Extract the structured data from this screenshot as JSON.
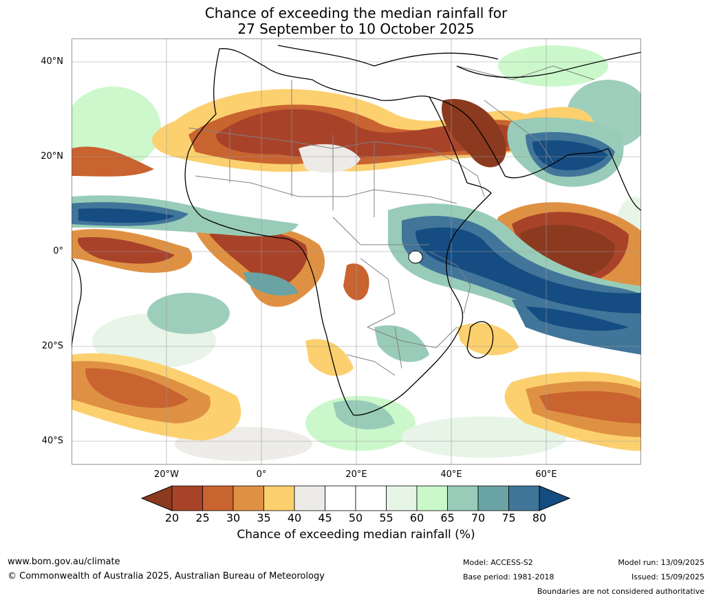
{
  "title": {
    "line1": "Chance of exceeding the median rainfall for",
    "line2": "27 September to 10 October 2025"
  },
  "axes": {
    "lat_labels": [
      "40°N",
      "20°N",
      "0°",
      "20°S",
      "40°S"
    ],
    "lon_labels": [
      "20°W",
      "0°",
      "20°E",
      "40°E",
      "60°E"
    ],
    "lat_range": [
      -45,
      45
    ],
    "lon_range": [
      -40,
      80
    ],
    "gridlines": true
  },
  "colorbar": {
    "ticks": [
      "20",
      "25",
      "30",
      "35",
      "40",
      "45",
      "50",
      "55",
      "60",
      "65",
      "70",
      "75",
      "80"
    ],
    "colors": [
      "#8b3a1f",
      "#a8432a",
      "#c9632f",
      "#df9143",
      "#fcd06f",
      "#edebe7",
      "#ffffff",
      "#ffffff",
      "#e6f4e6",
      "#c9f8c9",
      "#98ccb8",
      "#6aa3a3",
      "#41759a",
      "#154c82"
    ],
    "label": "Chance of exceeding median rainfall (%)"
  },
  "footer": {
    "website": "www.bom.gov.au/climate",
    "copyright": "© Commonwealth of Australia 2025, Australian Bureau of Meteorology",
    "model": "Model: ACCESS-S2",
    "base_period": "Base period: 1981-2018",
    "model_run": "Model run: 13/09/2025",
    "issued": "Issued: 15/09/2025",
    "boundaries_note": "Boundaries are not considered authoritative"
  }
}
